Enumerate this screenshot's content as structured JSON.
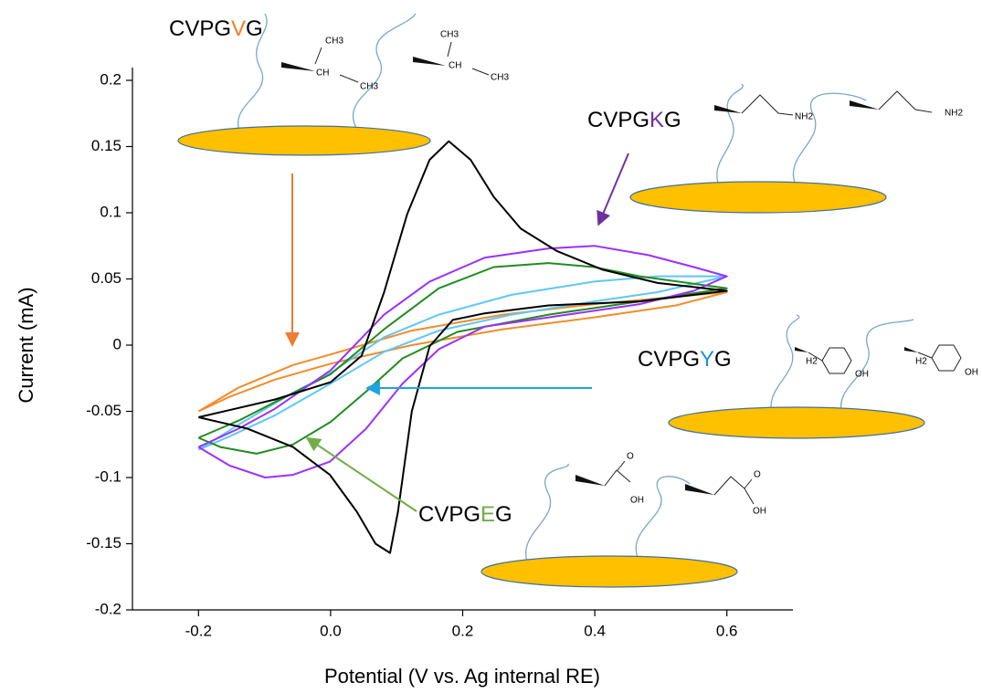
{
  "chart_data": {
    "type": "line",
    "xlabel": "Potential (V vs. Ag internal RE)",
    "ylabel": "Current (mA)",
    "xlim": [
      -0.3,
      0.7
    ],
    "ylim": [
      -0.2,
      0.2
    ],
    "xticks": [
      -0.2,
      {
        "value": 0,
        "label": "0.0"
      },
      0.2,
      0.4,
      0.6
    ],
    "yticks": [
      -0.2,
      -0.15,
      -0.1,
      -0.05,
      0,
      0.05,
      0.1,
      0.15,
      0.2
    ],
    "series": [
      {
        "color": "#f28c28",
        "x": [
          -0.2,
          -0.139,
          -0.057,
          0,
          0.123,
          0.261,
          0.399,
          0.6,
          0.523,
          0.399,
          0.261,
          0.123,
          0,
          -0.084,
          -0.153,
          -0.2
        ],
        "values": [
          -0.05,
          -0.032,
          -0.015,
          -0.007,
          0.011,
          0.023,
          0.031,
          0.04,
          0.03,
          0.021,
          0.012,
          0,
          -0.014,
          -0.026,
          -0.039,
          -0.05
        ]
      },
      {
        "color": "#5ec8f5",
        "x": [
          -0.2,
          -0.139,
          -0.057,
          0,
          0.081,
          0.164,
          0.274,
          0.399,
          0.495,
          0.6,
          0.495,
          0.399,
          0.274,
          0.164,
          0.081,
          0,
          -0.084,
          -0.153,
          -0.2
        ],
        "values": [
          -0.079,
          -0.06,
          -0.036,
          -0.021,
          0.006,
          0.023,
          0.038,
          0.048,
          0.052,
          0.052,
          0.04,
          0.033,
          0.023,
          0.011,
          -0.005,
          -0.029,
          -0.053,
          -0.069,
          -0.079
        ]
      },
      {
        "color": "#228b22",
        "x": [
          -0.2,
          -0.139,
          -0.084,
          0,
          0.081,
          0.164,
          0.247,
          0.33,
          0.399,
          0.468,
          0.6,
          0.468,
          0.33,
          0.192,
          0.109,
          0.054,
          0,
          -0.057,
          -0.112,
          -0.167,
          -0.2
        ],
        "values": [
          -0.07,
          -0.057,
          -0.043,
          -0.022,
          0.012,
          0.043,
          0.059,
          0.062,
          0.059,
          0.052,
          0.043,
          0.033,
          0.023,
          0.01,
          -0.01,
          -0.035,
          -0.058,
          -0.075,
          -0.082,
          -0.077,
          -0.07
        ]
      },
      {
        "color": "#9b30ff",
        "x": [
          -0.2,
          -0.139,
          -0.084,
          0,
          0.081,
          0.15,
          0.233,
          0.33,
          0.4,
          0.481,
          0.55,
          0.6,
          0.55,
          0.468,
          0.33,
          0.233,
          0.164,
          0.109,
          0.054,
          -0.001,
          -0.057,
          -0.099,
          -0.153,
          -0.2
        ],
        "values": [
          -0.077,
          -0.063,
          -0.048,
          -0.019,
          0.023,
          0.048,
          0.066,
          0.073,
          0.075,
          0.068,
          0.059,
          0.052,
          0.041,
          0.031,
          0.021,
          0.014,
          -0.003,
          -0.029,
          -0.063,
          -0.088,
          -0.098,
          -0.1,
          -0.091,
          -0.077
        ]
      },
      {
        "color": "#000000",
        "x": [
          -0.2,
          -0.084,
          0,
          0.047,
          0.081,
          0.116,
          0.15,
          0.179,
          0.212,
          0.247,
          0.288,
          0.343,
          0.412,
          0.495,
          0.6,
          0.468,
          0.33,
          0.233,
          0.185,
          0.15,
          0.123,
          0.102,
          0.09,
          0.068,
          0.04,
          -0.001,
          -0.057,
          -0.126,
          -0.2
        ],
        "values": [
          -0.0545,
          -0.041,
          -0.028,
          -0.008,
          0.04,
          0.099,
          0.14,
          0.154,
          0.14,
          0.112,
          0.088,
          0.071,
          0.057,
          0.047,
          0.041,
          0.033,
          0.03,
          0.024,
          0.019,
          -0.001,
          -0.05,
          -0.126,
          -0.157,
          -0.15,
          -0.126,
          -0.098,
          -0.077,
          -0.063,
          -0.0545
        ]
      }
    ],
    "annotations": [
      {
        "prefix": "CVPG",
        "residue": "V",
        "suffix": "G",
        "color": "#f07f2a"
      },
      {
        "prefix": "CVPG",
        "residue": "K",
        "suffix": "G",
        "color": "#7030a0"
      },
      {
        "prefix": "CVPG",
        "residue": "Y",
        "suffix": "G",
        "color": "#1f8fd0"
      },
      {
        "prefix": "CVPG",
        "residue": "E",
        "suffix": "G",
        "color": "#70ad47"
      }
    ]
  },
  "structures": {
    "valine": {
      "methyl": "CH3",
      "methine": "CH"
    },
    "lysine": {
      "amine": "NH2"
    },
    "tyrosine": {
      "hydroxyl": "OH",
      "methylene": "H2"
    },
    "glutamate": {
      "carbonyl": "O",
      "hydroxyl": "OH"
    }
  }
}
